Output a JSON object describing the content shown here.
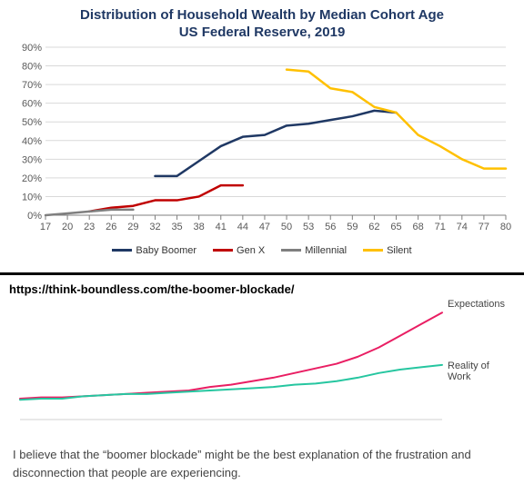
{
  "top_chart": {
    "type": "line",
    "title_line1": "Distribution of Household Wealth by Median Cohort Age",
    "title_line2": "US Federal Reserve, 2019",
    "title_color": "#1f3864",
    "title_fontsize": 15,
    "background_color": "#ffffff",
    "plot_bg": "#ffffff",
    "grid_color": "#d9d9d9",
    "axis_color": "#7f7f7f",
    "tick_font_color": "#595959",
    "tick_fontsize": 11,
    "x_ticks": [
      17,
      20,
      23,
      26,
      29,
      32,
      35,
      38,
      41,
      44,
      47,
      50,
      53,
      56,
      59,
      62,
      65,
      68,
      71,
      74,
      77,
      80
    ],
    "y_ticks": [
      0,
      10,
      20,
      30,
      40,
      50,
      60,
      70,
      80,
      90
    ],
    "ylim": [
      0,
      90
    ],
    "line_width": 2.5,
    "series": {
      "baby_boomer": {
        "label": "Baby Boomer",
        "color": "#1f3864",
        "data": [
          [
            32,
            21
          ],
          [
            35,
            21
          ],
          [
            38,
            29
          ],
          [
            41,
            37
          ],
          [
            44,
            42
          ],
          [
            47,
            43
          ],
          [
            50,
            48
          ],
          [
            53,
            49
          ],
          [
            56,
            51
          ],
          [
            59,
            53
          ],
          [
            62,
            56
          ],
          [
            65,
            55
          ]
        ]
      },
      "gen_x": {
        "label": "Gen X",
        "color": "#c00000",
        "data": [
          [
            23,
            2
          ],
          [
            26,
            4
          ],
          [
            29,
            5
          ],
          [
            32,
            8
          ],
          [
            35,
            8
          ],
          [
            38,
            10
          ],
          [
            41,
            16
          ],
          [
            44,
            16
          ]
        ]
      },
      "millennial": {
        "label": "Millennial",
        "color": "#7f7f7f",
        "data": [
          [
            17,
            0
          ],
          [
            20,
            1
          ],
          [
            23,
            2
          ],
          [
            26,
            3
          ],
          [
            29,
            3
          ]
        ]
      },
      "silent": {
        "label": "Silent",
        "color": "#ffc000",
        "data": [
          [
            50,
            78
          ],
          [
            53,
            77
          ],
          [
            56,
            68
          ],
          [
            59,
            66
          ],
          [
            62,
            58
          ],
          [
            65,
            55
          ],
          [
            68,
            43
          ],
          [
            71,
            37
          ],
          [
            74,
            30
          ],
          [
            77,
            25
          ],
          [
            80,
            25
          ]
        ]
      }
    }
  },
  "divider_color": "#000000",
  "bottom_chart": {
    "type": "line",
    "url": "https://think-boundless.com/the-boomer-blockade/",
    "url_fontsize": 13,
    "background_color": "#ffffff",
    "axis_color": "#d0d0d0",
    "line_width": 2,
    "labels": {
      "expectations": {
        "text": "Expectations",
        "color": "#555555"
      },
      "reality": {
        "text": "Reality of\nWork",
        "color": "#555555"
      }
    },
    "series": {
      "expectations": {
        "color": "#e91e63",
        "data": [
          [
            0,
            18
          ],
          [
            5,
            19
          ],
          [
            10,
            19
          ],
          [
            15,
            20
          ],
          [
            20,
            21
          ],
          [
            25,
            22
          ],
          [
            30,
            23
          ],
          [
            35,
            24
          ],
          [
            40,
            25
          ],
          [
            45,
            28
          ],
          [
            50,
            30
          ],
          [
            55,
            33
          ],
          [
            60,
            36
          ],
          [
            65,
            40
          ],
          [
            70,
            44
          ],
          [
            75,
            48
          ],
          [
            80,
            54
          ],
          [
            85,
            62
          ],
          [
            90,
            72
          ],
          [
            95,
            82
          ],
          [
            100,
            92
          ]
        ]
      },
      "reality": {
        "color": "#26c6a0",
        "data": [
          [
            0,
            17
          ],
          [
            5,
            18
          ],
          [
            10,
            18
          ],
          [
            15,
            20
          ],
          [
            20,
            21
          ],
          [
            25,
            22
          ],
          [
            30,
            22
          ],
          [
            35,
            23
          ],
          [
            40,
            24
          ],
          [
            45,
            25
          ],
          [
            50,
            26
          ],
          [
            55,
            27
          ],
          [
            60,
            28
          ],
          [
            65,
            30
          ],
          [
            70,
            31
          ],
          [
            75,
            33
          ],
          [
            80,
            36
          ],
          [
            85,
            40
          ],
          [
            90,
            43
          ],
          [
            95,
            45
          ],
          [
            100,
            47
          ]
        ]
      }
    }
  },
  "caption": "I believe that the “boomer blockade” might be the best explanation of the frustration and disconnection that people are experiencing."
}
